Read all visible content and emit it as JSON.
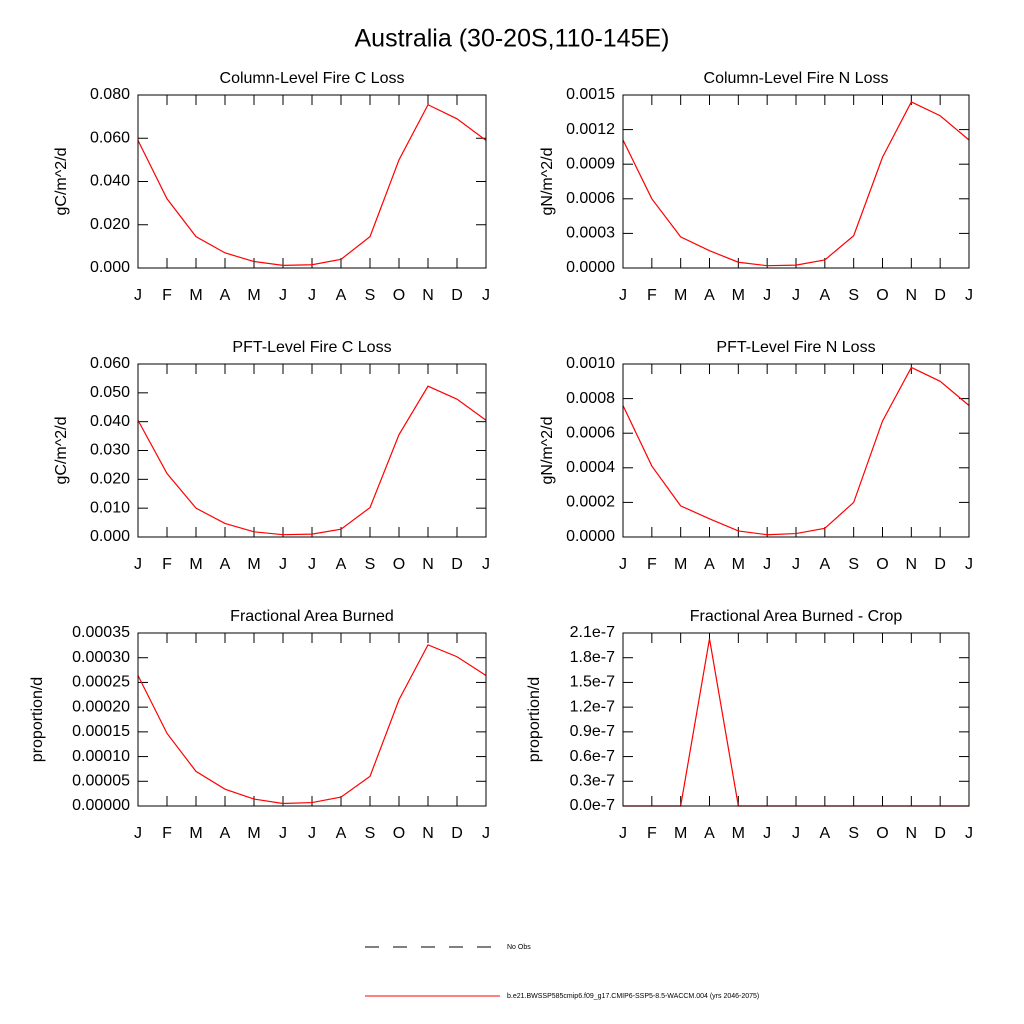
{
  "title": "Australia (30-20S,110-145E)",
  "legend": [
    {
      "name": "No Obs",
      "color": "#000000",
      "dashed": true
    },
    {
      "name": "b.e21.BWSSP585cmip6.f09_g17.CMIP6-SSP5-8.5-WACCM.004 (yrs 2046-2075)",
      "color": "#ff0000",
      "dashed": false
    }
  ],
  "chart_data": [
    {
      "type": "line",
      "title": "Column-Level Fire C Loss",
      "y_label": "gC/m^2/d",
      "color": "#ff0000",
      "categories": [
        "J",
        "F",
        "M",
        "A",
        "M",
        "J",
        "J",
        "A",
        "S",
        "O",
        "N",
        "D",
        "J"
      ],
      "values": [
        0.059,
        0.032,
        0.0145,
        0.007,
        0.003,
        0.0012,
        0.0015,
        0.004,
        0.0145,
        0.05,
        0.0755,
        0.069,
        0.059
      ],
      "ylim": [
        0,
        0.08
      ],
      "yticks": [
        {
          "value": 0,
          "label": "0.000"
        },
        {
          "value": 0.02,
          "label": "0.020"
        },
        {
          "value": 0.04,
          "label": "0.040"
        },
        {
          "value": 0.06,
          "label": "0.060"
        },
        {
          "value": 0.08,
          "label": "0.080"
        }
      ]
    },
    {
      "type": "line",
      "title": "Column-Level Fire N Loss",
      "y_label": "gN/m^2/d",
      "color": "#ff0000",
      "categories": [
        "J",
        "F",
        "M",
        "A",
        "M",
        "J",
        "J",
        "A",
        "S",
        "O",
        "N",
        "D",
        "J"
      ],
      "values": [
        0.00111,
        0.0006,
        0.00027,
        0.00015,
        5e-05,
        2e-05,
        2.5e-05,
        7e-05,
        0.00028,
        0.00096,
        0.00144,
        0.00132,
        0.00111
      ],
      "ylim": [
        0,
        0.0015
      ],
      "yticks": [
        {
          "value": 0,
          "label": "0.0000"
        },
        {
          "value": 0.0003,
          "label": "0.0003"
        },
        {
          "value": 0.0006,
          "label": "0.0006"
        },
        {
          "value": 0.0009,
          "label": "0.0009"
        },
        {
          "value": 0.0012,
          "label": "0.0012"
        },
        {
          "value": 0.0015,
          "label": "0.0015"
        }
      ]
    },
    {
      "type": "line",
      "title": "PFT-Level Fire C Loss",
      "y_label": "gC/m^2/d",
      "color": "#ff0000",
      "categories": [
        "J",
        "F",
        "M",
        "A",
        "M",
        "J",
        "J",
        "A",
        "S",
        "O",
        "N",
        "D",
        "J"
      ],
      "values": [
        0.0405,
        0.022,
        0.01,
        0.0047,
        0.0018,
        0.0008,
        0.001,
        0.0027,
        0.0102,
        0.0355,
        0.0523,
        0.0478,
        0.0405
      ],
      "ylim": [
        0,
        0.06
      ],
      "yticks": [
        {
          "value": 0,
          "label": "0.000"
        },
        {
          "value": 0.01,
          "label": "0.010"
        },
        {
          "value": 0.02,
          "label": "0.020"
        },
        {
          "value": 0.03,
          "label": "0.030"
        },
        {
          "value": 0.04,
          "label": "0.040"
        },
        {
          "value": 0.05,
          "label": "0.050"
        },
        {
          "value": 0.06,
          "label": "0.060"
        }
      ]
    },
    {
      "type": "line",
      "title": "PFT-Level Fire N Loss",
      "y_label": "gN/m^2/d",
      "color": "#ff0000",
      "categories": [
        "J",
        "F",
        "M",
        "A",
        "M",
        "J",
        "J",
        "A",
        "S",
        "O",
        "N",
        "D",
        "J"
      ],
      "values": [
        0.00076,
        0.00041,
        0.00018,
        0.000105,
        3.5e-05,
        1.3e-05,
        2e-05,
        5e-05,
        0.0002,
        0.00067,
        0.00098,
        0.0009,
        0.00076
      ],
      "ylim": [
        0,
        0.001
      ],
      "yticks": [
        {
          "value": 0,
          "label": "0.0000"
        },
        {
          "value": 0.0002,
          "label": "0.0002"
        },
        {
          "value": 0.0004,
          "label": "0.0004"
        },
        {
          "value": 0.0006,
          "label": "0.0006"
        },
        {
          "value": 0.0008,
          "label": "0.0008"
        },
        {
          "value": 0.001,
          "label": "0.0010"
        }
      ]
    },
    {
      "type": "line",
      "title": "Fractional Area Burned",
      "y_label": "proportion/d",
      "color": "#ff0000",
      "categories": [
        "J",
        "F",
        "M",
        "A",
        "M",
        "J",
        "J",
        "A",
        "S",
        "O",
        "N",
        "D",
        "J"
      ],
      "values": [
        0.000264,
        0.000147,
        7e-05,
        3.4e-05,
        1.4e-05,
        5e-06,
        7e-06,
        1.8e-05,
        6e-05,
        0.000215,
        0.000326,
        0.000302,
        0.000264
      ],
      "ylim": [
        0,
        0.00035
      ],
      "yticks": [
        {
          "value": 0,
          "label": "0.00000"
        },
        {
          "value": 5e-05,
          "label": "0.00005"
        },
        {
          "value": 0.0001,
          "label": "0.00010"
        },
        {
          "value": 0.00015,
          "label": "0.00015"
        },
        {
          "value": 0.0002,
          "label": "0.00020"
        },
        {
          "value": 0.00025,
          "label": "0.00025"
        },
        {
          "value": 0.0003,
          "label": "0.00030"
        },
        {
          "value": 0.00035,
          "label": "0.00035"
        }
      ]
    },
    {
      "type": "line",
      "title": "Fractional Area Burned - Crop",
      "y_label": "proportion/d",
      "color": "#ff0000",
      "categories": [
        "J",
        "F",
        "M",
        "A",
        "M",
        "J",
        "J",
        "A",
        "S",
        "O",
        "N",
        "D",
        "J"
      ],
      "values": [
        0,
        0,
        0,
        2.03e-07,
        0,
        0,
        0,
        0,
        0,
        0,
        0,
        0,
        0
      ],
      "ylim": [
        0,
        2.1e-07
      ],
      "yticks": [
        {
          "value": 0,
          "label": "0.0e-7"
        },
        {
          "value": 3e-08,
          "label": "0.3e-7"
        },
        {
          "value": 6e-08,
          "label": "0.6e-7"
        },
        {
          "value": 9e-08,
          "label": "0.9e-7"
        },
        {
          "value": 1.2e-07,
          "label": "1.2e-7"
        },
        {
          "value": 1.5e-07,
          "label": "1.5e-7"
        },
        {
          "value": 1.8e-07,
          "label": "1.8e-7"
        },
        {
          "value": 2.1e-07,
          "label": "2.1e-7"
        }
      ]
    }
  ]
}
